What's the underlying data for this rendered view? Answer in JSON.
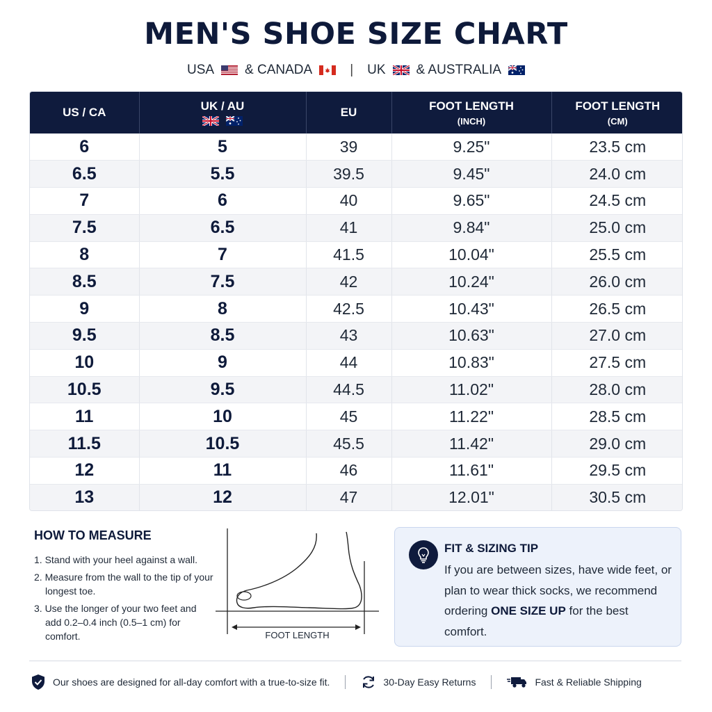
{
  "title": "MEN'S SHOE SIZE CHART",
  "regions": {
    "usa": "USA",
    "canada": "& CANADA",
    "separator": "|",
    "uk": "UK",
    "australia": "& AUSTRALIA"
  },
  "table": {
    "headers": {
      "us": "US / CA",
      "uk": "UK / AU",
      "eu": "EU",
      "inch_title": "FOOT LENGTH",
      "inch_unit": "(INCH)",
      "cm_title": "FOOT LENGTH",
      "cm_unit": "(CM)"
    },
    "rows": [
      [
        "6",
        "5",
        "39",
        "9.25\"",
        "23.5 cm"
      ],
      [
        "6.5",
        "5.5",
        "39.5",
        "9.45\"",
        "24.0 cm"
      ],
      [
        "7",
        "6",
        "40",
        "9.65\"",
        "24.5 cm"
      ],
      [
        "7.5",
        "6.5",
        "41",
        "9.84\"",
        "25.0 cm"
      ],
      [
        "8",
        "7",
        "41.5",
        "10.04\"",
        "25.5 cm"
      ],
      [
        "8.5",
        "7.5",
        "42",
        "10.24\"",
        "26.0 cm"
      ],
      [
        "9",
        "8",
        "42.5",
        "10.43\"",
        "26.5 cm"
      ],
      [
        "9.5",
        "8.5",
        "43",
        "10.63\"",
        "27.0 cm"
      ],
      [
        "10",
        "9",
        "44",
        "10.83\"",
        "27.5 cm"
      ],
      [
        "10.5",
        "9.5",
        "44.5",
        "11.02\"",
        "28.0 cm"
      ],
      [
        "11",
        "10",
        "45",
        "11.22\"",
        "28.5 cm"
      ],
      [
        "11.5",
        "10.5",
        "45.5",
        "11.42\"",
        "29.0 cm"
      ],
      [
        "12",
        "11",
        "46",
        "11.61\"",
        "29.5 cm"
      ],
      [
        "13",
        "12",
        "47",
        "12.01\"",
        "30.5 cm"
      ]
    ]
  },
  "how_to": {
    "title": "HOW TO MEASURE",
    "steps": [
      "1. Stand with your heel against a wall.",
      "2. Measure from the wall to the tip of your longest toe.",
      "3. Use the longer of your two feet and add 0.2–0.4 inch (0.5–1 cm) for comfort."
    ],
    "diagram_label": "FOOT LENGTH"
  },
  "tip": {
    "title": "FIT & SIZING TIP",
    "text_before": "If you are between sizes, have wide feet, or plan to wear thick socks, we recommend ordering ",
    "emphasis": "ONE SIZE UP",
    "text_after": " for the best comfort."
  },
  "footer": {
    "comfort": "Our shoes are designed for all-day comfort with a true-to-size fit.",
    "returns": "30-Day Easy Returns",
    "shipping": "Fast & Reliable Shipping"
  },
  "icons": {
    "shield": "shield-check-icon",
    "returns": "refresh-icon",
    "shipping": "truck-icon",
    "tip": "lightbulb-icon"
  },
  "colors": {
    "navy": "#0f1b3d",
    "tip_bg": "#edf2fb",
    "row_alt": "#f3f4f7"
  }
}
